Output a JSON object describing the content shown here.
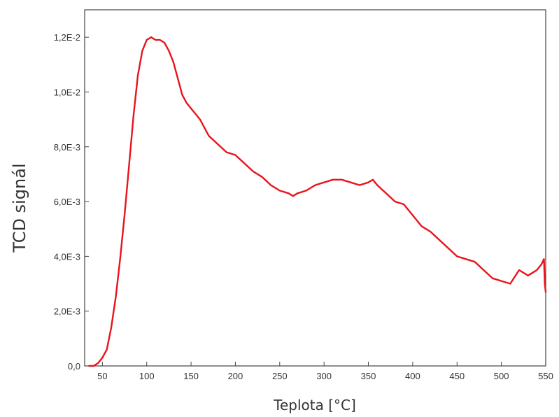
{
  "chart_data": {
    "type": "line",
    "title": "",
    "xlabel": "Teplota [°C]",
    "ylabel": "TCD signál",
    "xlim": [
      30,
      550
    ],
    "ylim": [
      0,
      0.013
    ],
    "grid": false,
    "line_color": "#e8141c",
    "x_ticks": [
      {
        "value": 50,
        "label": "50"
      },
      {
        "value": 100,
        "label": "100"
      },
      {
        "value": 150,
        "label": "150"
      },
      {
        "value": 200,
        "label": "200"
      },
      {
        "value": 250,
        "label": "250"
      },
      {
        "value": 300,
        "label": "300"
      },
      {
        "value": 350,
        "label": "350"
      },
      {
        "value": 400,
        "label": "400"
      },
      {
        "value": 450,
        "label": "450"
      },
      {
        "value": 500,
        "label": "500"
      },
      {
        "value": 550,
        "label": "550"
      }
    ],
    "y_ticks": [
      {
        "value": 0,
        "label": "0,0"
      },
      {
        "value": 0.002,
        "label": "2,0E-3"
      },
      {
        "value": 0.004,
        "label": "4,0E-3"
      },
      {
        "value": 0.006,
        "label": "6,0E-3"
      },
      {
        "value": 0.008,
        "label": "8,0E-3"
      },
      {
        "value": 0.01,
        "label": "1,0E-2"
      },
      {
        "value": 0.012,
        "label": "1,2E-2"
      }
    ],
    "series": [
      {
        "x": [
          35,
          40,
          45,
          50,
          55,
          60,
          65,
          70,
          75,
          80,
          85,
          90,
          95,
          100,
          105,
          110,
          115,
          120,
          125,
          130,
          135,
          140,
          145,
          150,
          160,
          170,
          180,
          190,
          200,
          210,
          220,
          230,
          240,
          250,
          260,
          265,
          270,
          280,
          290,
          300,
          310,
          320,
          330,
          340,
          350,
          355,
          360,
          370,
          380,
          390,
          400,
          410,
          420,
          430,
          440,
          450,
          460,
          470,
          480,
          490,
          500,
          510,
          520,
          525,
          530,
          540,
          545,
          548,
          549,
          550
        ],
        "y": [
          0.0,
          0.0,
          0.0001,
          0.0003,
          0.0006,
          0.0014,
          0.0025,
          0.0039,
          0.0055,
          0.0073,
          0.0091,
          0.0106,
          0.0115,
          0.0119,
          0.012,
          0.0119,
          0.0119,
          0.0118,
          0.0115,
          0.0111,
          0.0105,
          0.0099,
          0.0096,
          0.0094,
          0.009,
          0.0084,
          0.0081,
          0.0078,
          0.0077,
          0.0074,
          0.0071,
          0.0069,
          0.0066,
          0.0064,
          0.0063,
          0.0062,
          0.0063,
          0.0064,
          0.0066,
          0.0067,
          0.0068,
          0.0068,
          0.0067,
          0.0066,
          0.0067,
          0.0068,
          0.0066,
          0.0063,
          0.006,
          0.0059,
          0.0055,
          0.0051,
          0.0049,
          0.0046,
          0.0043,
          0.004,
          0.0039,
          0.0038,
          0.0035,
          0.0032,
          0.0031,
          0.003,
          0.0035,
          0.0034,
          0.0033,
          0.0035,
          0.0037,
          0.0039,
          0.003,
          0.0027
        ]
      }
    ]
  }
}
